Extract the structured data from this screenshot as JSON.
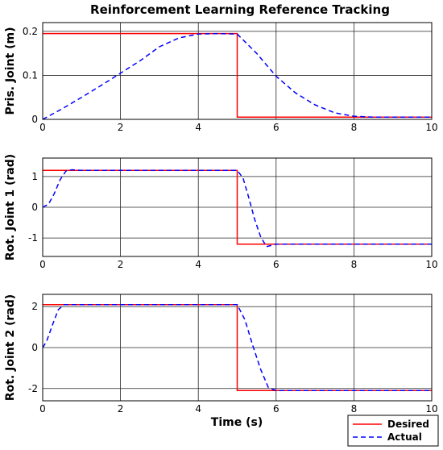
{
  "chart_data": {
    "title": "Reinforcement Learning Reference Tracking",
    "xlabel": "Time (s)",
    "legend": {
      "placement": "bottom-right",
      "entries": [
        {
          "label": "Desired",
          "color": "#ff0000",
          "style": "solid"
        },
        {
          "label": "Actual",
          "color": "#0000ff",
          "style": "dashed"
        }
      ]
    },
    "grid": true,
    "subplots": [
      {
        "type": "line",
        "ylabel": "Pris. Joint (m)",
        "xlim": [
          0,
          10
        ],
        "ylim": [
          0,
          0.22
        ],
        "xticks": [
          0,
          2,
          4,
          6,
          8,
          10
        ],
        "xtick_labels": [
          "0",
          "2",
          "4",
          "6",
          "8",
          "10"
        ],
        "yticks": [
          0,
          0.1,
          0.2
        ],
        "ytick_labels": [
          "0",
          "0.1",
          "0.2"
        ],
        "series": [
          {
            "name": "Desired",
            "color": "#ff0000",
            "style": "solid",
            "x": [
              0,
              5,
              5,
              10
            ],
            "y": [
              0.195,
              0.195,
              0.005,
              0.005
            ]
          },
          {
            "name": "Actual",
            "color": "#0000ff",
            "style": "dashed",
            "x": [
              0,
              0.5,
              1,
              1.5,
              2,
              2.5,
              3,
              3.5,
              4,
              4.5,
              5,
              5.5,
              6,
              6.5,
              7,
              7.5,
              8,
              8.5,
              9,
              9.5,
              10
            ],
            "y": [
              0,
              0.024,
              0.05,
              0.077,
              0.105,
              0.133,
              0.165,
              0.185,
              0.194,
              0.195,
              0.194,
              0.15,
              0.098,
              0.06,
              0.033,
              0.015,
              0.007,
              0.005,
              0.005,
              0.005,
              0.005
            ]
          }
        ]
      },
      {
        "type": "line",
        "ylabel": "Rot. Joint 1 (rad)",
        "xlim": [
          0,
          10
        ],
        "ylim": [
          -1.6,
          1.6
        ],
        "xticks": [
          0,
          2,
          4,
          6,
          8,
          10
        ],
        "xtick_labels": [
          "0",
          "2",
          "4",
          "6",
          "8",
          "10"
        ],
        "yticks": [
          -1,
          0,
          1
        ],
        "ytick_labels": [
          "-1",
          "0",
          "1"
        ],
        "series": [
          {
            "name": "Desired",
            "color": "#ff0000",
            "style": "solid",
            "x": [
              0,
              5,
              5,
              10
            ],
            "y": [
              1.2,
              1.2,
              -1.2,
              -1.2
            ]
          },
          {
            "name": "Actual",
            "color": "#0000ff",
            "style": "dashed",
            "x": [
              0,
              0.15,
              0.3,
              0.45,
              0.6,
              0.75,
              1,
              2,
              3,
              4,
              5,
              5.15,
              5.3,
              5.45,
              5.6,
              5.75,
              5.85,
              6,
              7,
              8,
              9,
              10
            ],
            "y": [
              0,
              0.1,
              0.45,
              0.9,
              1.18,
              1.22,
              1.2,
              1.2,
              1.2,
              1.2,
              1.2,
              0.95,
              0.3,
              -0.4,
              -0.95,
              -1.28,
              -1.25,
              -1.2,
              -1.2,
              -1.2,
              -1.2,
              -1.2
            ]
          }
        ]
      },
      {
        "type": "line",
        "ylabel": "Rot. Joint 2 (rad)",
        "xlim": [
          0,
          10
        ],
        "ylim": [
          -2.6,
          2.6
        ],
        "xticks": [
          0,
          2,
          4,
          6,
          8,
          10
        ],
        "xtick_labels": [
          "0",
          "2",
          "4",
          "6",
          "8",
          "10"
        ],
        "yticks": [
          -2,
          0,
          2
        ],
        "ytick_labels": [
          "-2",
          "0",
          "2"
        ],
        "series": [
          {
            "name": "Desired",
            "color": "#ff0000",
            "style": "solid",
            "x": [
              0,
              5,
              5,
              10
            ],
            "y": [
              2.1,
              2.1,
              -2.1,
              -2.1
            ]
          },
          {
            "name": "Actual",
            "color": "#0000ff",
            "style": "dashed",
            "x": [
              0,
              0.1,
              0.25,
              0.4,
              0.55,
              0.8,
              2,
              3,
              4,
              5,
              5.2,
              5.4,
              5.6,
              5.8,
              6,
              7,
              8,
              9,
              10
            ],
            "y": [
              0,
              0.3,
              1.1,
              1.85,
              2.1,
              2.1,
              2.1,
              2.1,
              2.1,
              2.1,
              1.35,
              0.1,
              -1.05,
              -1.95,
              -2.1,
              -2.1,
              -2.1,
              -2.1,
              -2.1
            ]
          }
        ]
      }
    ]
  }
}
